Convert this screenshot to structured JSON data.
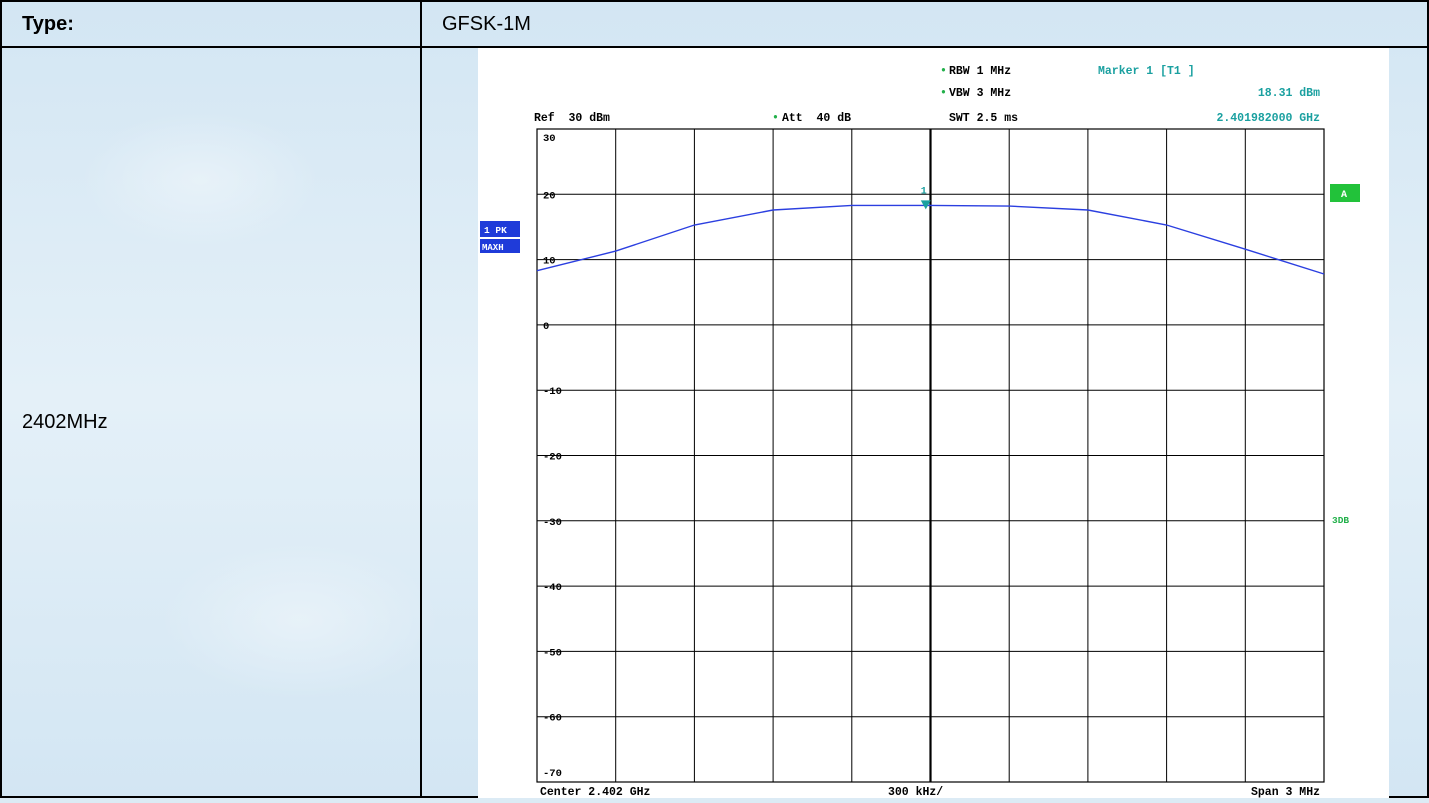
{
  "table": {
    "type_label": "Type:",
    "type_value": "GFSK-1M",
    "frequency_label": "2402MHz"
  },
  "chart_data": {
    "type": "line",
    "header": {
      "rbw": "RBW 1 MHz",
      "vbw": "VBW 3 MHz",
      "ref": "Ref  30 dBm",
      "att": "Att  40 dB",
      "swt": "SWT 2.5 ms",
      "marker_title": "Marker 1 [T1 ]",
      "marker_level": "18.31 dBm",
      "marker_freq": "2.401982000 GHz"
    },
    "left_badges": [
      "1 PK",
      "MAXH"
    ],
    "right_badges": [
      "A",
      "3DB"
    ],
    "y_ticks": [
      "30",
      "20",
      "10",
      "0",
      "-10",
      "-20",
      "-30",
      "-40",
      "-50",
      "-60",
      "-70"
    ],
    "ylim": [
      -70,
      30
    ],
    "xlim_mhz": [
      2400.5,
      2403.5
    ],
    "footer": {
      "center": "Center 2.402 GHz",
      "div": "300 kHz/",
      "span": "Span 3 MHz"
    },
    "marker": {
      "label": "1",
      "x_mhz": 2401.982,
      "y_dbm": 18.31
    },
    "series": [
      {
        "color": "#2b3fe0",
        "x_mhz": [
          2400.5,
          2400.8,
          2401.1,
          2401.4,
          2401.7,
          2402.0,
          2402.3,
          2402.6,
          2402.9,
          2403.2,
          2403.5
        ],
        "y_dbm": [
          8.3,
          11.3,
          15.3,
          17.6,
          18.3,
          18.3,
          18.2,
          17.6,
          15.3,
          11.6,
          7.8
        ]
      }
    ]
  }
}
